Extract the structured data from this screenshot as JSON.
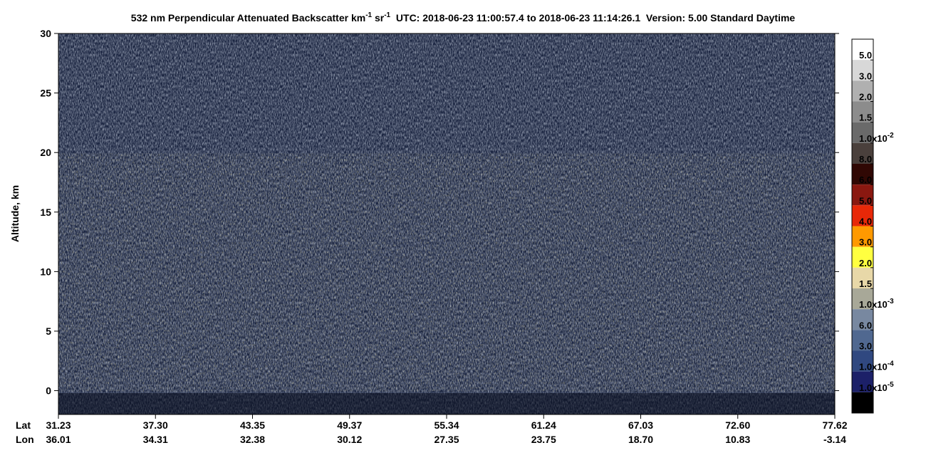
{
  "chart_data": {
    "type": "curtain",
    "title_parts": [
      "532 nm Perpendicular Attenuated Backscatter km",
      "-1",
      " sr",
      "-1",
      "  UTC: 2018-06-23 11:00:57.4 to 2018-06-23 11:14:26.1  Version: 5.00 Standard Daytime"
    ],
    "y_label": "Altitude, km",
    "ylim": [
      -2,
      30
    ],
    "yticks": [
      0,
      5,
      10,
      15,
      20,
      25,
      30
    ],
    "x_row_labels": [
      "Lat",
      "Lon"
    ],
    "lat": [
      31.23,
      {
        "value": 37.3,
        "label": "37.30"
      },
      43.35,
      49.37,
      55.34,
      61.24,
      67.03,
      {
        "value": 72.6,
        "label": "72.60"
      },
      77.62
    ],
    "lon": [
      36.01,
      34.31,
      32.38,
      30.12,
      27.35,
      23.75,
      {
        "value": 18.7,
        "label": "18.70"
      },
      10.83,
      -3.14
    ],
    "colorbar": {
      "colors": [
        "#ffffff",
        "#d8d8d8",
        "#b0b0b0",
        "#8c8c8c",
        "#6a6a6a",
        "#4a403c",
        "#300804",
        "#8a1810",
        "#e82808",
        "#ff9900",
        "#ffff40",
        "#e8d8a8",
        "#a8a898",
        "#7888a0",
        "#506890",
        "#304880",
        "#1c2068",
        "#000000"
      ],
      "labels": [
        {
          "text": "5.0"
        },
        {
          "text": "3.0"
        },
        {
          "text": "2.0"
        },
        {
          "text": "1.5"
        },
        {
          "text": "1.0x10",
          "sup": "-2"
        },
        {
          "text": "8.0"
        },
        {
          "text": "6.0"
        },
        {
          "text": "5.0"
        },
        {
          "text": "4.0"
        },
        {
          "text": "3.0"
        },
        {
          "text": "2.0"
        },
        {
          "text": "1.5"
        },
        {
          "text": "1.0x10",
          "sup": "-3"
        },
        {
          "text": "6.0"
        },
        {
          "text": "3.0"
        },
        {
          "text": "1.0x10",
          "sup": "-4"
        },
        {
          "text": "1.0x10",
          "sup": "-5"
        }
      ]
    }
  }
}
